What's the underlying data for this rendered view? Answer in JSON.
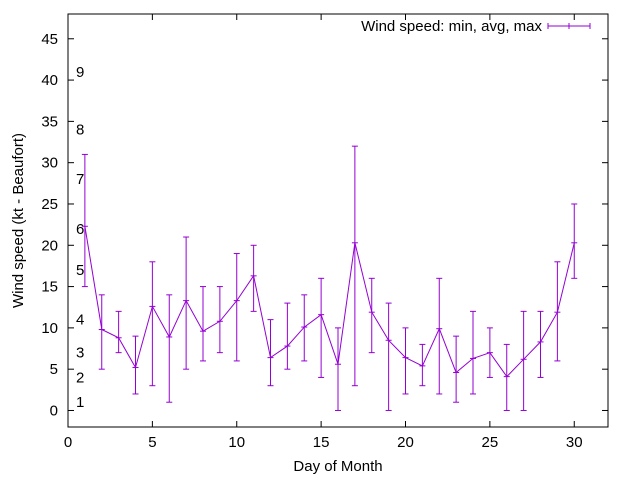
{
  "chart_data": {
    "type": "line",
    "xlabel": "Day of Month",
    "ylabel": "Wind speed (kt - Beaufort)",
    "xlim": [
      0,
      32
    ],
    "ylim": [
      -2,
      48
    ],
    "x_ticks": [
      0,
      5,
      10,
      15,
      20,
      25,
      30
    ],
    "y_ticks": [
      0,
      5,
      10,
      15,
      20,
      25,
      30,
      35,
      40,
      45
    ],
    "beaufort_labels": [
      {
        "label": "1",
        "y": 1
      },
      {
        "label": "2",
        "y": 4
      },
      {
        "label": "3",
        "y": 7
      },
      {
        "label": "4",
        "y": 11
      },
      {
        "label": "5",
        "y": 17
      },
      {
        "label": "6",
        "y": 22
      },
      {
        "label": "7",
        "y": 28
      },
      {
        "label": "8",
        "y": 34
      },
      {
        "label": "9",
        "y": 41
      }
    ],
    "legend_position": "top-right",
    "grid": false,
    "series": [
      {
        "name": "Wind speed: min, avg, max",
        "color": "#9400d3",
        "x": [
          1,
          2,
          3,
          4,
          5,
          6,
          7,
          8,
          9,
          10,
          11,
          12,
          13,
          14,
          15,
          16,
          17,
          18,
          19,
          20,
          21,
          22,
          23,
          24,
          25,
          26,
          27,
          28,
          29,
          30
        ],
        "avg": [
          22.3,
          9.8,
          8.8,
          5.2,
          12.6,
          8.9,
          13.3,
          9.6,
          10.8,
          13.3,
          16.3,
          6.4,
          7.8,
          10.1,
          11.6,
          5.6,
          20.3,
          11.9,
          8.5,
          6.4,
          5.4,
          9.9,
          4.6,
          6.3,
          7.0,
          4.1,
          6.2,
          8.3,
          11.9,
          20.3
        ],
        "min": [
          15,
          5,
          7,
          2,
          3,
          1,
          5,
          6,
          7,
          6,
          12,
          3,
          5,
          6,
          4,
          0,
          3,
          7,
          0,
          2,
          3,
          2,
          1,
          2,
          4,
          0,
          0,
          4,
          6,
          16
        ],
        "max": [
          31,
          14,
          12,
          9,
          18,
          14,
          21,
          15,
          15,
          19,
          20,
          11,
          13,
          14,
          16,
          10,
          32,
          16,
          13,
          10,
          8,
          16,
          9,
          12,
          10,
          8,
          12,
          12,
          18,
          25
        ]
      }
    ]
  }
}
